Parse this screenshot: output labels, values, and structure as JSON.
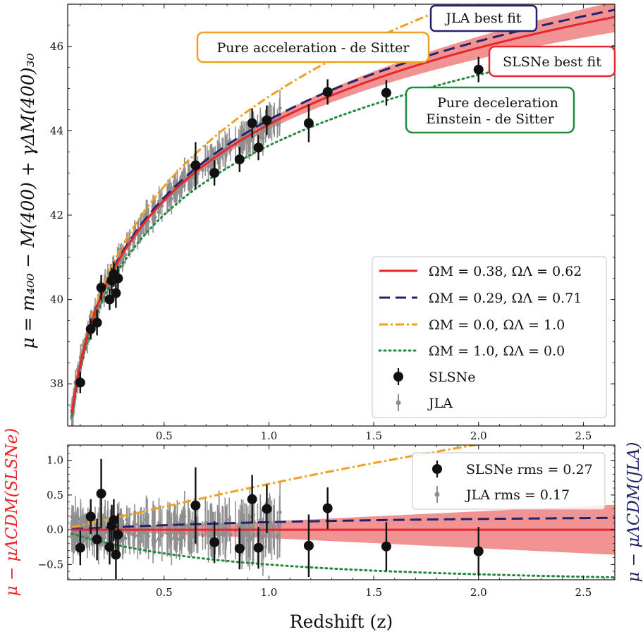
{
  "chart_data": [
    {
      "type": "scatter",
      "title": "",
      "xlabel": "",
      "ylabel": "μ = m₄₀₀ − M(400) + γΔM(400)₃₀",
      "xlim": [
        0.04,
        2.65
      ],
      "ylim": [
        37.0,
        47.0
      ],
      "xticks": [
        "0.5",
        "1.0",
        "1.5",
        "2.0",
        "2.5"
      ],
      "yticks": [
        "38",
        "40",
        "42",
        "44",
        "46"
      ],
      "curves": [
        {
          "name": "ΩM = 0.38, ΩΛ = 0.62",
          "om": 0.38,
          "ol": 0.62,
          "color": "#e8262c",
          "style": "solid"
        },
        {
          "name": "ΩM = 0.29, ΩΛ = 0.71",
          "om": 0.29,
          "ol": 0.71,
          "color": "#23236b",
          "style": "dashed"
        },
        {
          "name": "ΩM = 0.0, ΩΛ = 1.0",
          "om": 0.0,
          "ol": 1.0,
          "color": "#f0a020",
          "style": "dashdot"
        },
        {
          "name": "ΩM = 1.0, ΩΛ = 0.0",
          "om": 1.0,
          "ol": 0.0,
          "color": "#208a3a",
          "style": "dotted"
        }
      ],
      "band": {
        "color": "#f08080",
        "halfwidth_at_z": [
          [
            0.0,
            0.0
          ],
          [
            1.0,
            0.12
          ],
          [
            2.65,
            0.36
          ]
        ]
      },
      "series": [
        {
          "name": "SLSNe",
          "color": "#111111",
          "points": [
            {
              "x": 0.1,
              "y": 38.03,
              "err": 0.25
            },
            {
              "x": 0.15,
              "y": 39.3,
              "err": 0.25
            },
            {
              "x": 0.18,
              "y": 39.45,
              "err": 0.3
            },
            {
              "x": 0.2,
              "y": 40.28,
              "err": 0.3
            },
            {
              "x": 0.24,
              "y": 40.0,
              "err": 0.25
            },
            {
              "x": 0.25,
              "y": 40.45,
              "err": 0.3
            },
            {
              "x": 0.26,
              "y": 40.6,
              "err": 0.3
            },
            {
              "x": 0.27,
              "y": 40.15,
              "err": 0.35
            },
            {
              "x": 0.28,
              "y": 40.5,
              "err": 0.3
            },
            {
              "x": 0.65,
              "y": 43.18,
              "err": 0.55
            },
            {
              "x": 0.74,
              "y": 43.0,
              "err": 0.3
            },
            {
              "x": 0.86,
              "y": 43.32,
              "err": 0.3
            },
            {
              "x": 0.92,
              "y": 44.18,
              "err": 0.35
            },
            {
              "x": 0.95,
              "y": 43.6,
              "err": 0.3
            },
            {
              "x": 0.99,
              "y": 44.25,
              "err": 0.35
            },
            {
              "x": 1.19,
              "y": 44.18,
              "err": 0.45
            },
            {
              "x": 1.28,
              "y": 44.92,
              "err": 0.3
            },
            {
              "x": 1.56,
              "y": 44.9,
              "err": 0.3
            },
            {
              "x": 2.0,
              "y": 45.45,
              "err": 0.3
            }
          ]
        },
        {
          "name": "JLA",
          "color": "#8f8f8f",
          "points": []
        }
      ],
      "legend": {
        "position": "lower-right",
        "entries": [
          "ΩM = 0.38, ΩΛ = 0.62",
          "ΩM = 0.29, ΩΛ = 0.71",
          "ΩM = 0.0, ΩΛ = 1.0",
          "ΩM = 1.0, ΩΛ = 0.0",
          "SLSNe",
          "JLA"
        ]
      },
      "annotations": [
        {
          "text": "JLA best fit",
          "color": "#23236b"
        },
        {
          "text": "Pure acceleration - de Sitter",
          "color": "#f0a020"
        },
        {
          "text": "SLSNe best fit",
          "color": "#e8262c"
        },
        {
          "lines": [
            "Pure deceleration",
            "Einstein - de Sitter"
          ],
          "color": "#208a3a"
        }
      ]
    },
    {
      "type": "scatter",
      "title": "",
      "xlabel": "Redshift (z)",
      "ylabel": "μ − μΛCDM(SLSNe)",
      "ylabel_right": "μ − μΛCDM(JLA)",
      "ylabel_color": "#e8262c",
      "ylabel_right_color": "#23236b",
      "xlim": [
        0.04,
        2.65
      ],
      "ylim": [
        -0.72,
        1.22
      ],
      "xticks": [
        "0.5",
        "1.0",
        "1.5",
        "2.0",
        "2.5"
      ],
      "yticks": [
        "−0.5",
        "0.0",
        "0.5",
        "1.0"
      ],
      "series": [
        {
          "name": "SLSNe rms = 0.27",
          "color": "#111111",
          "points": [
            {
              "x": 0.1,
              "y": -0.26,
              "err": 0.25
            },
            {
              "x": 0.15,
              "y": 0.19,
              "err": 0.25
            },
            {
              "x": 0.18,
              "y": -0.14,
              "err": 0.3
            },
            {
              "x": 0.2,
              "y": 0.52,
              "err": 0.5
            },
            {
              "x": 0.24,
              "y": -0.25,
              "err": 0.25
            },
            {
              "x": 0.25,
              "y": 0.06,
              "err": 0.3
            },
            {
              "x": 0.26,
              "y": 0.14,
              "err": 0.3
            },
            {
              "x": 0.27,
              "y": -0.36,
              "err": 0.35
            },
            {
              "x": 0.28,
              "y": -0.07,
              "err": 0.3
            },
            {
              "x": 0.65,
              "y": 0.35,
              "err": 0.55
            },
            {
              "x": 0.74,
              "y": -0.18,
              "err": 0.3
            },
            {
              "x": 0.86,
              "y": -0.27,
              "err": 0.3
            },
            {
              "x": 0.92,
              "y": 0.44,
              "err": 0.35
            },
            {
              "x": 0.95,
              "y": -0.26,
              "err": 0.3
            },
            {
              "x": 0.99,
              "y": 0.3,
              "err": 0.35
            },
            {
              "x": 1.19,
              "y": -0.23,
              "err": 0.45
            },
            {
              "x": 1.28,
              "y": 0.31,
              "err": 0.3
            },
            {
              "x": 1.56,
              "y": -0.24,
              "err": 0.35
            },
            {
              "x": 2.0,
              "y": -0.31,
              "err": 0.35
            }
          ]
        },
        {
          "name": "JLA rms = 0.17",
          "color": "#8f8f8f",
          "points": []
        }
      ],
      "legend": {
        "position": "upper-right",
        "entries": [
          "SLSNe rms = 0.27",
          "JLA rms = 0.17"
        ]
      }
    }
  ]
}
